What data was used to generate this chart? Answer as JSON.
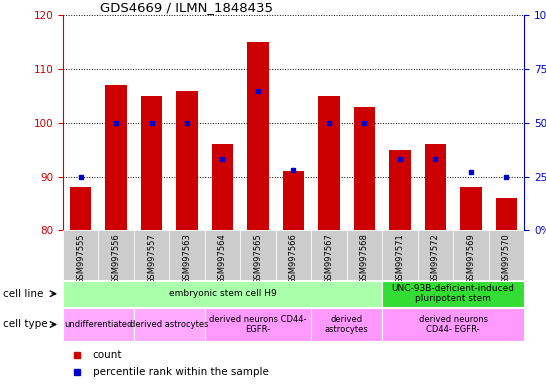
{
  "title": "GDS4669 / ILMN_1848435",
  "samples": [
    "GSM997555",
    "GSM997556",
    "GSM997557",
    "GSM997563",
    "GSM997564",
    "GSM997565",
    "GSM997566",
    "GSM997567",
    "GSM997568",
    "GSM997571",
    "GSM997572",
    "GSM997569",
    "GSM997570"
  ],
  "counts": [
    88,
    107,
    105,
    106,
    96,
    115,
    91,
    105,
    103,
    95,
    96,
    88,
    86
  ],
  "percentiles": [
    25,
    50,
    50,
    50,
    33,
    65,
    28,
    50,
    50,
    33,
    33,
    27,
    25
  ],
  "ylim_left": [
    80,
    120
  ],
  "ylim_right": [
    0,
    100
  ],
  "yticks_left": [
    80,
    90,
    100,
    110,
    120
  ],
  "yticks_right": [
    0,
    25,
    50,
    75,
    100
  ],
  "bar_color": "#cc0000",
  "dot_color": "#0000cc",
  "bar_width": 0.6,
  "cell_line_groups": [
    {
      "label": "embryonic stem cell H9",
      "start": 0,
      "end": 9,
      "color": "#aaffaa"
    },
    {
      "label": "UNC-93B-deficient-induced\npluripotent stem",
      "start": 9,
      "end": 13,
      "color": "#33dd33"
    }
  ],
  "cell_type_groups": [
    {
      "label": "undifferentiated",
      "start": 0,
      "end": 2,
      "color": "#ffaaff"
    },
    {
      "label": "derived astrocytes",
      "start": 2,
      "end": 4,
      "color": "#ffaaff"
    },
    {
      "label": "derived neurons CD44-\nEGFR-",
      "start": 4,
      "end": 7,
      "color": "#ff99ff"
    },
    {
      "label": "derived\nastrocytes",
      "start": 7,
      "end": 9,
      "color": "#ff99ff"
    },
    {
      "label": "derived neurons\nCD44- EGFR-",
      "start": 9,
      "end": 13,
      "color": "#ff99ff"
    }
  ],
  "cell_line_row_label": "cell line",
  "cell_type_row_label": "cell type",
  "legend_count_label": "count",
  "legend_pct_label": "percentile rank within the sample",
  "tick_color_left": "#cc0000",
  "tick_color_right": "#0000cc",
  "xticklabel_bg": "#cccccc"
}
